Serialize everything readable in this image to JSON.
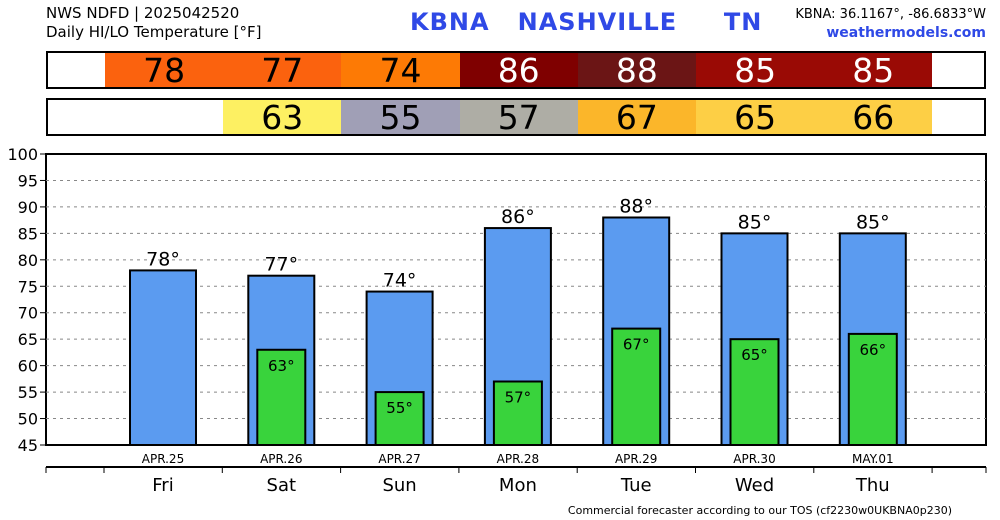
{
  "header": {
    "line1": "NWS NDFD | 2025042520",
    "line2": "Daily HI/LO Temperature [°F]",
    "station": "KBNA   NASHVILLE     TN",
    "coords": "KBNA: 36.1167°, -86.6833°W",
    "site": "weathermodels.com"
  },
  "strips": {
    "highs": [
      {
        "value": "78",
        "color": "#fb620e",
        "text_color": "#000000"
      },
      {
        "value": "77",
        "color": "#fb620e",
        "text_color": "#000000"
      },
      {
        "value": "74",
        "color": "#fd7a05",
        "text_color": "#000000"
      },
      {
        "value": "86",
        "color": "#7f0000",
        "text_color": "#ffffff"
      },
      {
        "value": "88",
        "color": "#6b1515",
        "text_color": "#ffffff"
      },
      {
        "value": "85",
        "color": "#9a0a05",
        "text_color": "#ffffff"
      },
      {
        "value": "85",
        "color": "#9a0a05",
        "text_color": "#ffffff"
      }
    ],
    "lows": [
      null,
      {
        "value": "63",
        "color": "#fdf062",
        "text_color": "#000000"
      },
      {
        "value": "55",
        "color": "#a09fb6",
        "text_color": "#000000"
      },
      {
        "value": "57",
        "color": "#aeada5",
        "text_color": "#000000"
      },
      {
        "value": "67",
        "color": "#fbb62a",
        "text_color": "#000000"
      },
      {
        "value": "65",
        "color": "#fdcf45",
        "text_color": "#000000"
      },
      {
        "value": "66",
        "color": "#fdcf45",
        "text_color": "#000000"
      }
    ]
  },
  "chart_data": {
    "type": "bar",
    "categories": [
      "Fri",
      "Sat",
      "Sun",
      "Mon",
      "Tue",
      "Wed",
      "Thu"
    ],
    "dates": [
      "APR.25",
      "APR.26",
      "APR.27",
      "APR.28",
      "APR.29",
      "APR.30",
      "MAY.01"
    ],
    "series": [
      {
        "values": [
          78,
          77,
          74,
          86,
          88,
          85,
          85
        ],
        "color": "#5b9bf0"
      },
      {
        "values": [
          null,
          63,
          55,
          57,
          67,
          65,
          66
        ],
        "color": "#39d33c"
      }
    ],
    "high_labels": [
      "78°",
      "77°",
      "74°",
      "86°",
      "88°",
      "85°",
      "85°"
    ],
    "low_labels": [
      "",
      "63°",
      "55°",
      "57°",
      "67°",
      "65°",
      "66°"
    ],
    "ylim": [
      45,
      100
    ],
    "yticks": [
      45,
      50,
      55,
      60,
      65,
      70,
      75,
      80,
      85,
      90,
      95,
      100
    ],
    "grid": true
  },
  "footer": "Commercial forecaster according to our TOS (cf2230w0UKBNA0p230)"
}
